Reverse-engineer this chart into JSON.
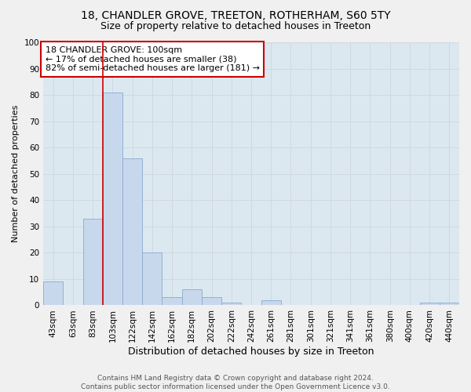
{
  "title1": "18, CHANDLER GROVE, TREETON, ROTHERHAM, S60 5TY",
  "title2": "Size of property relative to detached houses in Treeton",
  "xlabel": "Distribution of detached houses by size in Treeton",
  "ylabel": "Number of detached properties",
  "bar_labels": [
    "43sqm",
    "63sqm",
    "83sqm",
    "103sqm",
    "122sqm",
    "142sqm",
    "162sqm",
    "182sqm",
    "202sqm",
    "222sqm",
    "242sqm",
    "261sqm",
    "281sqm",
    "301sqm",
    "321sqm",
    "341sqm",
    "361sqm",
    "380sqm",
    "400sqm",
    "420sqm",
    "440sqm"
  ],
  "bar_values": [
    9,
    0,
    33,
    81,
    56,
    20,
    3,
    6,
    3,
    1,
    0,
    2,
    0,
    0,
    0,
    0,
    0,
    0,
    0,
    1,
    1
  ],
  "bar_color": "#c8d8ec",
  "bar_edge_color": "#88aace",
  "vline_x_index": 3,
  "vline_color": "#cc0000",
  "annotation_text": "18 CHANDLER GROVE: 100sqm\n← 17% of detached houses are smaller (38)\n82% of semi-detached houses are larger (181) →",
  "annotation_box_color": "#ffffff",
  "annotation_box_edge_color": "#cc0000",
  "ylim": [
    0,
    100
  ],
  "yticks": [
    0,
    10,
    20,
    30,
    40,
    50,
    60,
    70,
    80,
    90,
    100
  ],
  "grid_color": "#d0d8e0",
  "bg_color": "#dce8f0",
  "fig_color": "#f0f0f0",
  "footer": "Contains HM Land Registry data © Crown copyright and database right 2024.\nContains public sector information licensed under the Open Government Licence v3.0.",
  "title1_fontsize": 10,
  "title2_fontsize": 9,
  "xlabel_fontsize": 9,
  "ylabel_fontsize": 8,
  "tick_fontsize": 7.5,
  "footer_fontsize": 6.5,
  "annotation_fontsize": 8
}
